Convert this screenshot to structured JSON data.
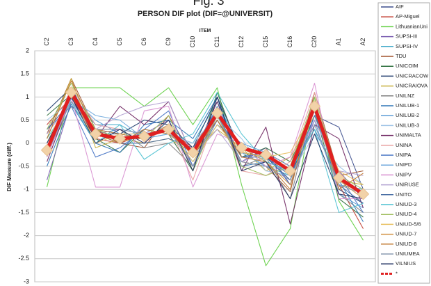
{
  "chart_data": {
    "type": "line",
    "figure_label": "Fig. 3",
    "title": "PERSON DIF plot (DIF=@UNIVERSIT)",
    "x_label": "ITEM",
    "y_label": "DIF Measure (diff.)",
    "categories": [
      "C2",
      "C3",
      "C4",
      "C5",
      "C6",
      "C9",
      "C10",
      "C11",
      "C12",
      "C15",
      "C16",
      "C20",
      "A1",
      "A2"
    ],
    "ylim": [
      -3,
      2
    ],
    "yticks": [
      2,
      1.5,
      1,
      0.5,
      0,
      -0.5,
      -1,
      -1.5,
      -2,
      -2.5,
      -3
    ],
    "grid": true,
    "legend": "right",
    "series": [
      {
        "name": "AIF",
        "color": "#3a4b8c",
        "values": [
          0.3,
          0.9,
          0.3,
          0.2,
          0.1,
          0.4,
          -0.3,
          0.8,
          -0.2,
          -0.3,
          -0.7,
          0.6,
          0.35,
          -1.0
        ]
      },
      {
        "name": "AP-Miguel",
        "color": "#c0392b",
        "values": [
          0.4,
          1.0,
          0.1,
          0.0,
          0.2,
          0.3,
          -0.1,
          0.7,
          -0.3,
          -0.2,
          -0.5,
          0.9,
          -0.9,
          -1.85
        ]
      },
      {
        "name": "LithuanianUni",
        "color": "#5fce3f",
        "values": [
          -0.95,
          1.2,
          1.2,
          1.2,
          0.8,
          1.2,
          0.4,
          1.2,
          -0.9,
          -2.65,
          -1.85,
          1.0,
          -1.25,
          -2.1
        ]
      },
      {
        "name": "SUPSI-III",
        "color": "#7a5cb0",
        "values": [
          -0.8,
          0.9,
          0.2,
          0.3,
          0.2,
          0.5,
          -0.5,
          0.6,
          -0.4,
          -0.1,
          -0.9,
          0.5,
          -0.6,
          -1.2
        ]
      },
      {
        "name": "SUPSI-IV",
        "color": "#3fa8c8",
        "values": [
          -0.3,
          1.0,
          0.4,
          0.4,
          0.1,
          0.2,
          0.0,
          0.9,
          -0.2,
          -0.5,
          -0.7,
          0.4,
          -0.9,
          -1.0
        ]
      },
      {
        "name": "TDU",
        "color": "#a0522d",
        "values": [
          0.2,
          1.4,
          0.3,
          0.0,
          -0.1,
          0.6,
          -0.3,
          0.5,
          -0.4,
          -0.5,
          -1.05,
          1.1,
          -0.7,
          -0.6
        ]
      },
      {
        "name": "UNICOIM",
        "color": "#2c6f3c",
        "values": [
          0.6,
          1.05,
          0.1,
          -0.2,
          0.3,
          0.2,
          -0.6,
          1.1,
          -0.3,
          -0.1,
          -0.4,
          0.7,
          -1.2,
          -1.6
        ]
      },
      {
        "name": "UNICRACOW",
        "color": "#1f3a6b",
        "values": [
          0.7,
          1.2,
          0.2,
          0.2,
          0.5,
          0.4,
          -0.1,
          1.0,
          -0.2,
          -0.3,
          -0.8,
          0.8,
          -1.0,
          -1.3
        ]
      },
      {
        "name": "UNICRAIOVA",
        "color": "#c8b040",
        "values": [
          0.1,
          1.4,
          -0.1,
          0.1,
          0.0,
          0.1,
          -0.2,
          0.3,
          -0.1,
          -0.6,
          -0.3,
          0.6,
          -0.8,
          -0.9
        ]
      },
      {
        "name": "UNILNZ",
        "color": "#7f7f7f",
        "values": [
          -0.2,
          0.8,
          0.3,
          0.3,
          -0.1,
          0.0,
          -0.5,
          0.7,
          -0.5,
          -0.3,
          -1.2,
          0.9,
          -1.1,
          -1.5
        ]
      },
      {
        "name": "UNILUB-1",
        "color": "#2e75b6",
        "values": [
          -0.5,
          0.85,
          0.0,
          -0.2,
          0.4,
          0.5,
          0.1,
          1.0,
          -0.5,
          -0.4,
          -0.6,
          0.3,
          -0.8,
          -1.7
        ]
      },
      {
        "name": "UNILUB-2",
        "color": "#5b9bd5",
        "values": [
          0.0,
          1.0,
          0.5,
          0.2,
          0.2,
          0.3,
          -0.4,
          0.4,
          0.0,
          -0.2,
          -0.5,
          0.5,
          -1.1,
          -1.4
        ]
      },
      {
        "name": "UNILUB-3",
        "color": "#9dc3e6",
        "values": [
          0.5,
          0.9,
          0.2,
          0.1,
          0.3,
          0.2,
          0.0,
          0.6,
          0.1,
          -0.6,
          -0.7,
          0.2,
          -0.5,
          -0.9
        ]
      },
      {
        "name": "UNIMALTA",
        "color": "#6a1f5c",
        "values": [
          -0.4,
          1.0,
          0.1,
          0.8,
          0.4,
          0.9,
          -0.3,
          0.9,
          -0.6,
          0.35,
          -1.75,
          0.4,
          0.1,
          -1.4
        ]
      },
      {
        "name": "UNINA",
        "color": "#e8a0a0",
        "values": [
          -0.1,
          1.2,
          0.4,
          0.3,
          0.0,
          0.4,
          -0.8,
          0.7,
          -0.6,
          -0.7,
          -0.4,
          1.1,
          -0.8,
          -1.1
        ]
      },
      {
        "name": "UNIPA",
        "color": "#4472c4",
        "values": [
          0.3,
          0.8,
          -0.3,
          -0.1,
          0.3,
          0.7,
          -0.5,
          0.5,
          -0.3,
          -0.2,
          -0.9,
          0.6,
          -0.7,
          -1.5
        ]
      },
      {
        "name": "UNIPD",
        "color": "#6fa8dc",
        "values": [
          0.0,
          0.95,
          0.6,
          0.5,
          0.1,
          0.2,
          -0.2,
          0.8,
          -0.2,
          -0.5,
          -0.6,
          0.7,
          -0.9,
          -1.0
        ]
      },
      {
        "name": "UNIPV",
        "color": "#d890d0",
        "values": [
          -0.3,
          1.0,
          -0.95,
          -0.95,
          0.7,
          0.8,
          -0.95,
          0.2,
          0.0,
          -0.5,
          -0.3,
          1.3,
          -1.2,
          -1.2
        ]
      },
      {
        "name": "UNIRUSE",
        "color": "#b0a0d0",
        "values": [
          0.2,
          0.9,
          0.3,
          0.6,
          0.8,
          0.9,
          -0.3,
          0.3,
          -0.4,
          -0.2,
          -0.6,
          0.5,
          -0.6,
          -0.7
        ]
      },
      {
        "name": "UNITO",
        "color": "#4a6fa5",
        "values": [
          -0.2,
          1.15,
          0.2,
          0.0,
          0.0,
          0.1,
          -0.1,
          0.6,
          -0.3,
          -0.3,
          -0.8,
          0.9,
          -0.9,
          -1.3
        ]
      },
      {
        "name": "UNIUD-3",
        "color": "#4bc0d0",
        "values": [
          0.1,
          0.9,
          0.0,
          0.4,
          -0.35,
          0.0,
          0.2,
          1.1,
          0.2,
          -0.4,
          -0.6,
          0.3,
          -1.5,
          -1.3
        ]
      },
      {
        "name": "UNIUD-4",
        "color": "#9fbc5c",
        "values": [
          0.3,
          1.3,
          0.3,
          0.1,
          0.1,
          0.6,
          -0.6,
          0.6,
          -0.5,
          -0.7,
          -0.5,
          1.0,
          -0.7,
          -1.0
        ]
      },
      {
        "name": "UNIUD-5/6",
        "color": "#e8c060",
        "values": [
          0.0,
          1.1,
          0.0,
          0.2,
          0.2,
          0.3,
          -0.4,
          0.4,
          -0.2,
          -0.3,
          -0.2,
          0.7,
          -0.6,
          -0.9
        ]
      },
      {
        "name": "UNIUD-7",
        "color": "#d09040",
        "values": [
          -0.1,
          1.0,
          0.3,
          0.2,
          0.1,
          0.4,
          -0.3,
          0.6,
          -0.1,
          -0.4,
          -0.9,
          0.8,
          -0.8,
          -1.2
        ]
      },
      {
        "name": "UNIUD-8",
        "color": "#c07830",
        "values": [
          0.1,
          1.35,
          0.2,
          0.0,
          0.3,
          0.2,
          -0.2,
          0.5,
          -0.3,
          -0.4,
          -1.0,
          0.9,
          -1.0,
          -0.65
        ]
      },
      {
        "name": "UNIUMEA",
        "color": "#8a9ab0",
        "values": [
          -0.2,
          0.9,
          0.3,
          0.3,
          0.2,
          0.3,
          -0.5,
          0.6,
          -0.4,
          -0.5,
          -0.8,
          0.4,
          -0.9,
          -1.1
        ]
      },
      {
        "name": "VILNIUS",
        "color": "#1f2f5f",
        "values": [
          0.0,
          1.0,
          0.0,
          0.3,
          0.0,
          0.5,
          -0.6,
          1.0,
          -0.6,
          -0.4,
          -1.2,
          0.2,
          -1.1,
          -1.2
        ]
      },
      {
        "name": "*",
        "color": "#e02020",
        "values": [
          -0.15,
          1.1,
          0.2,
          0.1,
          0.15,
          0.3,
          -0.2,
          0.65,
          -0.1,
          -0.25,
          -0.6,
          0.8,
          -0.75,
          -1.1
        ]
      }
    ]
  }
}
